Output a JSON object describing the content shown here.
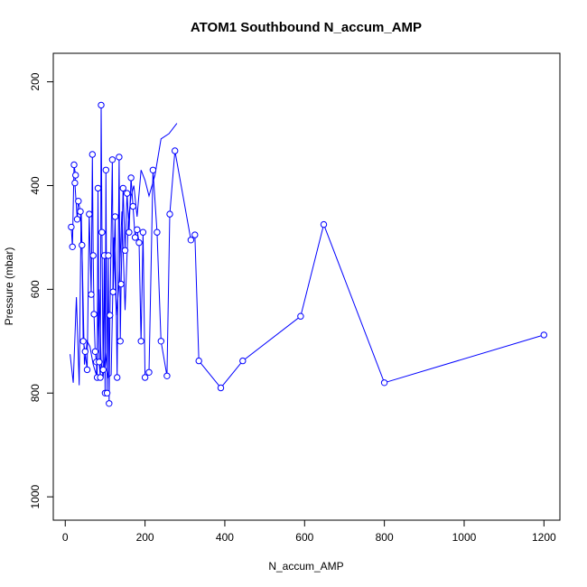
{
  "chart_data": {
    "type": "line",
    "title": "ATOM1 Southbound N_accum_AMP",
    "xlabel": "N_accum_AMP",
    "ylabel": "Pressure (mbar)",
    "xlim": [
      -30,
      1240
    ],
    "ylim": [
      1045,
      145
    ],
    "y_axis_reversed": true,
    "x_ticks": [
      0,
      200,
      400,
      600,
      800,
      1000,
      1200
    ],
    "y_ticks": [
      200,
      400,
      600,
      800,
      1000
    ],
    "grid": false,
    "legend": "none",
    "series_color": "#0000ff",
    "marker": "open-circle",
    "series": [
      {
        "x": [
          15,
          18,
          22,
          26,
          24,
          30,
          33,
          38,
          42,
          45,
          50,
          55,
          60,
          65,
          68,
          70,
          72,
          75,
          78,
          80,
          82,
          85,
          88,
          90,
          92,
          95,
          98,
          100,
          102,
          105,
          108,
          110,
          112,
          118,
          120,
          125,
          130,
          135,
          138,
          140,
          145,
          150,
          155,
          160,
          165,
          170,
          175,
          180,
          185,
          190,
          195,
          200,
          210,
          220,
          230,
          240,
          255,
          262,
          275,
          315,
          325,
          335,
          390,
          445,
          590,
          648,
          800,
          1200
        ],
        "y": [
          480,
          518,
          360,
          380,
          395,
          465,
          430,
          450,
          515,
          700,
          720,
          755,
          455,
          610,
          340,
          535,
          648,
          720,
          740,
          770,
          405,
          740,
          770,
          245,
          490,
          755,
          535,
          800,
          370,
          800,
          535,
          820,
          650,
          350,
          605,
          460,
          770,
          345,
          700,
          590,
          405,
          525,
          415,
          490,
          385,
          440,
          500,
          485,
          510,
          700,
          490,
          770,
          760,
          370,
          490,
          700,
          767,
          455,
          333,
          505,
          495,
          738,
          790,
          738,
          652,
          475,
          780,
          688
        ]
      },
      {
        "x": [
          12,
          20,
          28,
          35,
          40,
          48,
          55,
          62,
          70,
          78,
          85,
          90,
          95,
          100,
          108,
          115,
          122,
          128,
          135,
          142,
          150,
          158,
          165,
          172,
          180,
          190,
          200,
          210,
          225,
          240,
          260,
          280
        ],
        "y": [
          725,
          780,
          615,
          785,
          445,
          745,
          700,
          710,
          745,
          765,
          600,
          740,
          770,
          720,
          770,
          765,
          500,
          650,
          590,
          450,
          640,
          470,
          420,
          400,
          460,
          370,
          390,
          420,
          380,
          310,
          300,
          280
        ]
      }
    ]
  }
}
